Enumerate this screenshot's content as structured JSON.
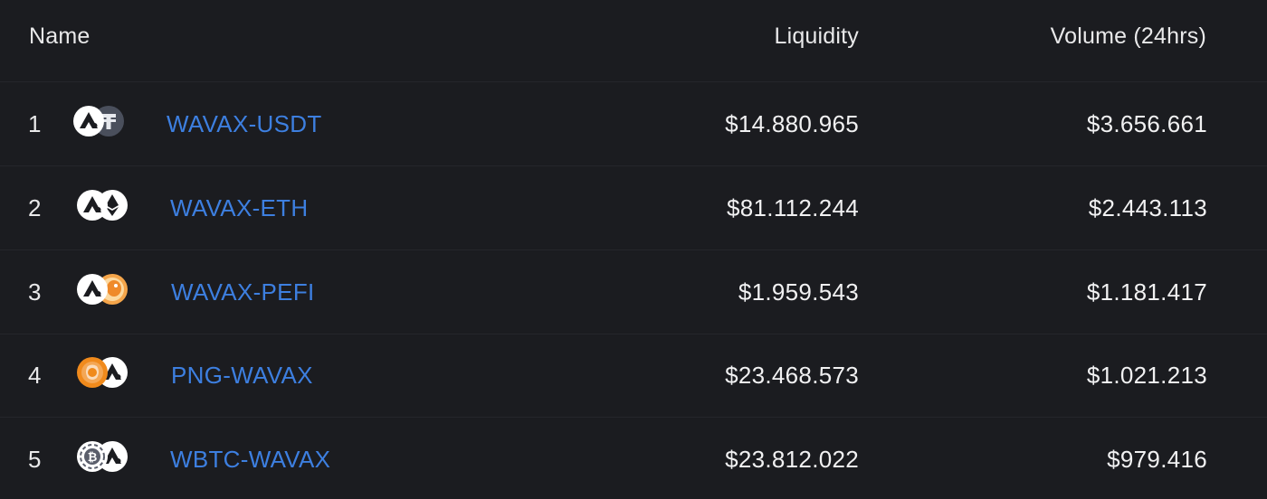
{
  "table": {
    "headers": {
      "name": "Name",
      "liquidity": "Liquidity",
      "volume": "Volume (24hrs)"
    },
    "rows": [
      {
        "rank": "1",
        "pair": "WAVAX-USDT",
        "liquidity": "$14.880.965",
        "volume": "$3.656.661",
        "icons": [
          "avax-icon",
          "usdt-icon"
        ]
      },
      {
        "rank": "2",
        "pair": "WAVAX-ETH",
        "liquidity": "$81.112.244",
        "volume": "$2.443.113",
        "icons": [
          "avax-icon",
          "eth-icon"
        ]
      },
      {
        "rank": "3",
        "pair": "WAVAX-PEFI",
        "liquidity": "$1.959.543",
        "volume": "$1.181.417",
        "icons": [
          "avax-icon",
          "pefi-icon"
        ]
      },
      {
        "rank": "4",
        "pair": "PNG-WAVAX",
        "liquidity": "$23.468.573",
        "volume": "$1.021.213",
        "icons": [
          "png-icon",
          "avax-icon"
        ]
      },
      {
        "rank": "5",
        "pair": "WBTC-WAVAX",
        "liquidity": "$23.812.022",
        "volume": "$979.416",
        "icons": [
          "wbtc-icon",
          "avax-icon"
        ]
      }
    ]
  },
  "colors": {
    "background": "#1b1c20",
    "link": "#3d7fe0",
    "text": "#f1f1f2",
    "divider": "#25262b"
  }
}
